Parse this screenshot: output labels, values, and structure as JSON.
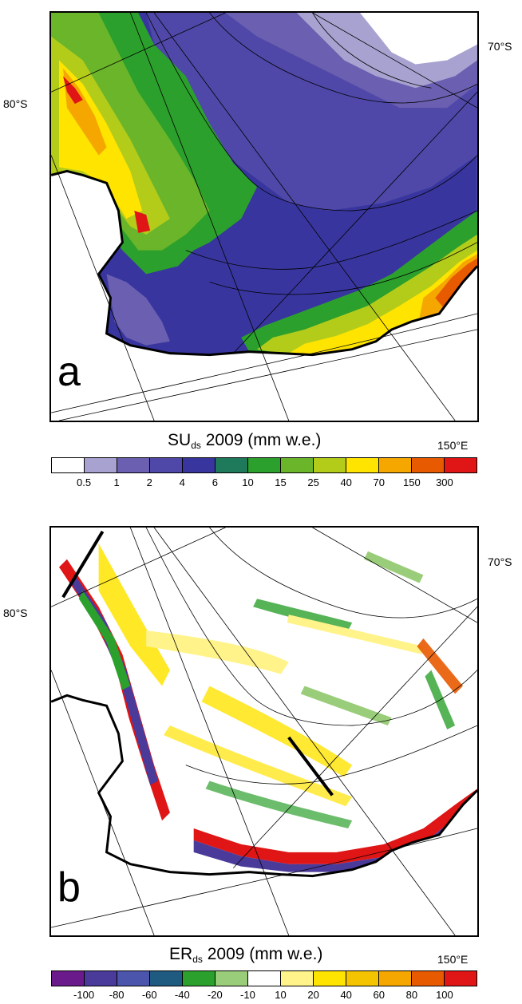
{
  "panels": [
    {
      "letter": "a",
      "title_main": "SU",
      "title_sub": "ds",
      "title_rest": " 2009 (mm w.e.)",
      "lat_labels": [
        "80°S",
        "70°S"
      ],
      "lon_label": "150°E",
      "legend": {
        "colors": [
          "#ffffff",
          "#a8a2d0",
          "#6a5fb0",
          "#4f48a8",
          "#38369e",
          "#1e7a5a",
          "#2ca02c",
          "#6ab52a",
          "#b3cc1a",
          "#ffe400",
          "#f5a700",
          "#e85a00",
          "#e01515"
        ],
        "labels": [
          "0.5",
          "1",
          "2",
          "4",
          "6",
          "10",
          "15",
          "25",
          "40",
          "70",
          "150",
          "300"
        ]
      }
    },
    {
      "letter": "b",
      "title_main": "ER",
      "title_sub": "ds",
      "title_rest": " 2009 (mm w.e.)",
      "lat_labels": [
        "80°S",
        "70°S"
      ],
      "lon_label": "150°E",
      "legend": {
        "colors": [
          "#6a1a8a",
          "#4a3a9a",
          "#4b55ab",
          "#1f5a80",
          "#2ca02c",
          "#9acd7a",
          "#ffffff",
          "#fff38a",
          "#ffe400",
          "#f5c400",
          "#f5a700",
          "#e85a00",
          "#e01515"
        ],
        "labels": [
          "-100",
          "-80",
          "-60",
          "-40",
          "-20",
          "-10",
          "10",
          "20",
          "40",
          "60",
          "80",
          "100"
        ]
      }
    }
  ]
}
